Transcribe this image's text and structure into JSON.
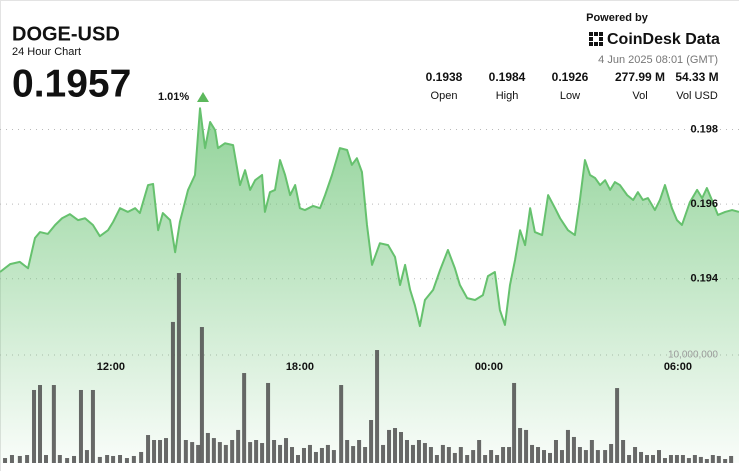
{
  "header": {
    "symbol": "DOGE-USD",
    "subtitle": "24 Hour Chart",
    "price": "0.1957",
    "change": "1.01%",
    "powered_by": "Powered by",
    "brand": "CoinDesk Data",
    "timestamp": "4 Jun 2025 08:01 (GMT)",
    "stats": [
      {
        "value": "0.1938",
        "label": "Open"
      },
      {
        "value": "0.1984",
        "label": "High"
      },
      {
        "value": "0.1926",
        "label": "Low"
      },
      {
        "value": "277.99 M",
        "label": "Vol"
      },
      {
        "value": "54.33 M",
        "label": "Vol USD"
      }
    ]
  },
  "chart_data": [
    {
      "type": "area",
      "color": "#66c16e",
      "grid": true,
      "xlim": [
        8.48,
        31.94
      ],
      "xticks": [
        {
          "value": 12,
          "label": "12:00"
        },
        {
          "value": 18,
          "label": "18:00"
        },
        {
          "value": 24,
          "label": "00:00"
        },
        {
          "value": 30,
          "label": "06:00"
        }
      ],
      "ylim": [
        0.18906,
        0.19879
      ],
      "yticks": [
        0.194,
        0.196,
        0.198
      ],
      "x": [
        8.48,
        8.8,
        9.11,
        9.37,
        9.59,
        9.75,
        10.0,
        10.23,
        10.45,
        10.7,
        10.96,
        11.18,
        11.43,
        11.65,
        11.91,
        12.07,
        12.29,
        12.54,
        12.77,
        12.92,
        13.18,
        13.34,
        13.5,
        13.65,
        13.88,
        14.04,
        14.19,
        14.45,
        14.67,
        14.83,
        14.99,
        15.15,
        15.31,
        15.4,
        15.62,
        15.88,
        16.1,
        16.26,
        16.42,
        16.58,
        16.8,
        16.89,
        17.05,
        17.21,
        17.37,
        17.53,
        17.69,
        17.85,
        18.0,
        18.16,
        18.42,
        18.64,
        18.8,
        19.02,
        19.27,
        19.5,
        19.65,
        19.81,
        19.97,
        20.13,
        20.29,
        20.54,
        20.8,
        21.02,
        21.18,
        21.34,
        21.5,
        21.65,
        21.81,
        21.97,
        22.23,
        22.45,
        22.7,
        22.92,
        23.08,
        23.31,
        23.56,
        23.81,
        23.97,
        24.19,
        24.35,
        24.51,
        24.67,
        24.83,
        24.99,
        25.15,
        25.31,
        25.46,
        25.69,
        25.88,
        26.1,
        26.26,
        26.51,
        26.73,
        26.89,
        27.05,
        27.21,
        27.37,
        27.53,
        27.69,
        27.85,
        28.0,
        28.16,
        28.39,
        28.58,
        28.73,
        28.89,
        29.05,
        29.27,
        29.43,
        29.59,
        29.81,
        29.97,
        30.13,
        30.38,
        30.61,
        30.77,
        30.92,
        31.08,
        31.27,
        31.5,
        31.72,
        31.94
      ],
      "values": [
        0.19418,
        0.19439,
        0.19445,
        0.19428,
        0.19509,
        0.19525,
        0.1952,
        0.19544,
        0.19562,
        0.19573,
        0.19557,
        0.19562,
        0.19544,
        0.19514,
        0.1953,
        0.19552,
        0.19589,
        0.19579,
        0.19589,
        0.19576,
        0.19651,
        0.19654,
        0.1953,
        0.19576,
        0.19557,
        0.19471,
        0.19552,
        0.19638,
        0.19678,
        0.19857,
        0.1975,
        0.1982,
        0.19798,
        0.1975,
        0.19763,
        0.19758,
        0.19651,
        0.19691,
        0.19638,
        0.19664,
        0.19678,
        0.19579,
        0.19632,
        0.19638,
        0.19718,
        0.19678,
        0.19624,
        0.19651,
        0.19589,
        0.19584,
        0.19595,
        0.19589,
        0.19624,
        0.19678,
        0.1975,
        0.19745,
        0.19705,
        0.19723,
        0.19686,
        0.19544,
        0.19437,
        0.19495,
        0.1949,
        0.19458,
        0.19383,
        0.19437,
        0.1937,
        0.19329,
        0.19273,
        0.19343,
        0.1937,
        0.19423,
        0.19477,
        0.19428,
        0.19383,
        0.19348,
        0.19343,
        0.19356,
        0.19407,
        0.19418,
        0.19316,
        0.19276,
        0.19383,
        0.1945,
        0.1953,
        0.1949,
        0.19589,
        0.19525,
        0.19517,
        0.19624,
        0.19589,
        0.19562,
        0.1953,
        0.19517,
        0.19611,
        0.19718,
        0.19678,
        0.1967,
        0.19651,
        0.19664,
        0.19638,
        0.19659,
        0.19651,
        0.19624,
        0.19611,
        0.19632,
        0.19611,
        0.19616,
        0.19584,
        0.19611,
        0.19651,
        0.19589,
        0.19557,
        0.19544,
        0.19605,
        0.19638,
        0.19616,
        0.19643,
        0.19611,
        0.19571,
        0.19579,
        0.19584,
        0.19579
      ]
    },
    {
      "type": "bar",
      "color": "#4d4d4d",
      "grid": true,
      "xlim": [
        8.48,
        31.94
      ],
      "ylim": [
        0,
        33610000
      ],
      "yticks": [
        {
          "value": 10000000,
          "label": "10,000,000"
        }
      ],
      "x": [
        8.64,
        8.86,
        9.11,
        9.34,
        9.56,
        9.75,
        9.94,
        10.19,
        10.38,
        10.61,
        10.83,
        11.05,
        11.24,
        11.43,
        11.65,
        11.88,
        12.07,
        12.29,
        12.51,
        12.73,
        12.96,
        13.18,
        13.37,
        13.56,
        13.75,
        13.97,
        14.16,
        14.38,
        14.58,
        14.77,
        14.89,
        15.08,
        15.27,
        15.46,
        15.65,
        15.85,
        16.04,
        16.23,
        16.42,
        16.61,
        16.8,
        16.99,
        17.18,
        17.37,
        17.56,
        17.75,
        17.94,
        18.13,
        18.32,
        18.51,
        18.7,
        18.89,
        19.08,
        19.31,
        19.5,
        19.69,
        19.88,
        20.07,
        20.26,
        20.45,
        20.64,
        20.83,
        21.02,
        21.21,
        21.4,
        21.59,
        21.78,
        21.97,
        22.16,
        22.35,
        22.54,
        22.73,
        22.92,
        23.11,
        23.31,
        23.5,
        23.69,
        23.88,
        24.07,
        24.26,
        24.45,
        24.64,
        24.8,
        24.99,
        25.18,
        25.37,
        25.56,
        25.75,
        25.94,
        26.13,
        26.32,
        26.51,
        26.7,
        26.89,
        27.08,
        27.27,
        27.46,
        27.69,
        27.88,
        28.07,
        28.26,
        28.45,
        28.64,
        28.83,
        29.02,
        29.21,
        29.4,
        29.59,
        29.78,
        29.97,
        30.16,
        30.35,
        30.54,
        30.73,
        30.92,
        31.11,
        31.3,
        31.5,
        31.69
      ],
      "values": [
        460000,
        740000,
        650000,
        740000,
        6760000,
        7220000,
        740000,
        7220000,
        740000,
        460000,
        650000,
        6760000,
        1200000,
        6760000,
        560000,
        740000,
        650000,
        740000,
        460000,
        650000,
        1020000,
        2590000,
        2130000,
        2130000,
        2310000,
        13060000,
        17590000,
        2130000,
        1940000,
        1670000,
        12590000,
        2780000,
        2310000,
        1940000,
        1670000,
        2130000,
        3060000,
        8330000,
        1940000,
        2130000,
        1850000,
        7410000,
        2130000,
        1670000,
        2310000,
        1480000,
        740000,
        1390000,
        1670000,
        1020000,
        1390000,
        1670000,
        1200000,
        7220000,
        2130000,
        1570000,
        2130000,
        1480000,
        3980000,
        10460000,
        1670000,
        3060000,
        3240000,
        2870000,
        2130000,
        1670000,
        2130000,
        1850000,
        1480000,
        740000,
        1670000,
        1480000,
        930000,
        1480000,
        740000,
        1200000,
        2130000,
        740000,
        1200000,
        740000,
        1480000,
        1480000,
        7410000,
        3240000,
        3060000,
        1670000,
        1480000,
        1200000,
        930000,
        2130000,
        1200000,
        3060000,
        2410000,
        1480000,
        1200000,
        2130000,
        1200000,
        1200000,
        1760000,
        6940000,
        2130000,
        740000,
        1480000,
        1020000,
        740000,
        740000,
        1200000,
        460000,
        740000,
        740000,
        740000,
        460000,
        740000,
        560000,
        370000,
        740000,
        650000,
        370000,
        650000
      ]
    }
  ]
}
